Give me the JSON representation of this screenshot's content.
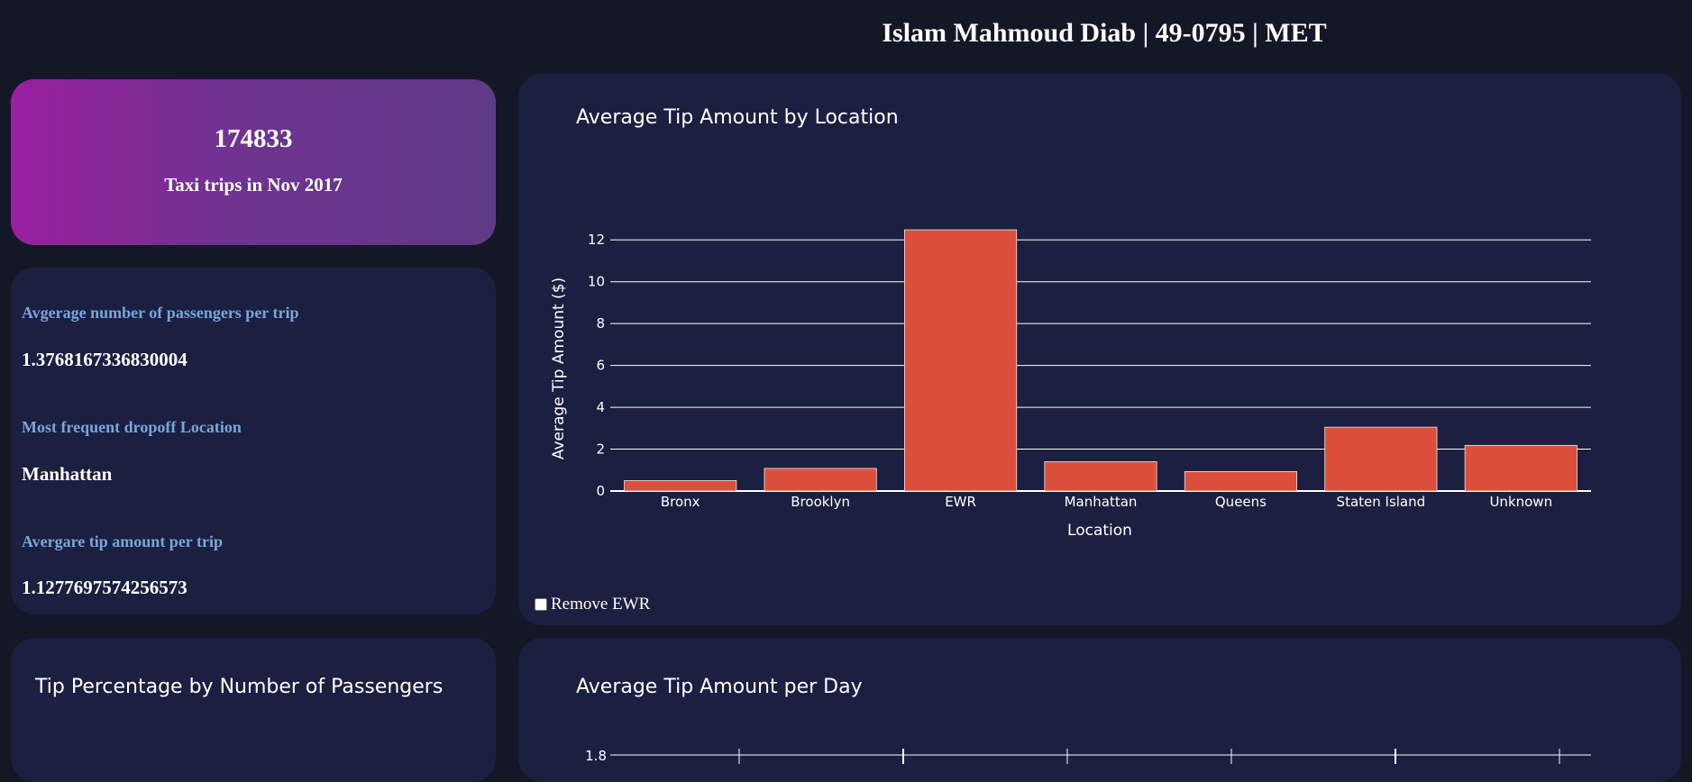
{
  "header": {
    "title": "Islam Mahmoud Diab | 49-0795 | MET"
  },
  "kpi": {
    "value": "174833",
    "caption": "Taxi trips in Nov 2017"
  },
  "stats": [
    {
      "label": "Avgerage number of passengers per trip",
      "value": "1.3768167336830004"
    },
    {
      "label": "Most frequent dropoff Location",
      "value": "Manhattan"
    },
    {
      "label": "Avergare tip amount per trip",
      "value": "1.1277697574256573"
    }
  ],
  "colors": {
    "bar": "#dd4f3d",
    "card": "#1b1f40",
    "page": "#141826",
    "label": "#7aa6dc"
  },
  "controls": {
    "remove_ewr_label": "Remove EWR",
    "remove_ewr_checked": false
  },
  "panels": {
    "tip_by_passengers_title": "Tip Percentage by Number of Passengers",
    "avg_tip_per_day_title": "Average Tip Amount per Day",
    "avg_tip_per_day_first_tick": "1.8"
  },
  "chart_data": {
    "type": "bar",
    "title": "Average Tip Amount by Location",
    "xlabel": "Location",
    "ylabel": "Average Tip Amount ($)",
    "categories": [
      "Bronx",
      "Brooklyn",
      "EWR",
      "Manhattan",
      "Queens",
      "Staten Island",
      "Unknown"
    ],
    "values": [
      0.5,
      1.08,
      12.48,
      1.4,
      0.93,
      3.05,
      2.18
    ],
    "ylim": [
      0,
      13
    ],
    "yticks": [
      0,
      2,
      4,
      6,
      8,
      10,
      12
    ],
    "grid": true
  }
}
